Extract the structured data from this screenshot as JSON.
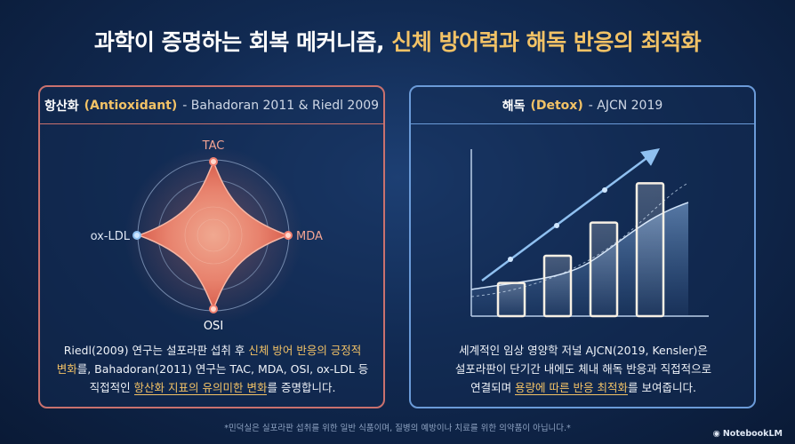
{
  "title": {
    "main": "과학이 증명하는 회복 메커니즘, ",
    "highlight": "신체 방어력과 해독 반응의 최적화"
  },
  "left_panel": {
    "heading_ko": "항산화",
    "heading_en": "(Antioxidant)",
    "heading_sub": " - Bahadoran 2011 & Riedl 2009",
    "axes": {
      "top": "TAC",
      "right": "MDA",
      "bottom": "OSI",
      "left": "ox-LDL"
    },
    "desc": {
      "l1a": "Riedl(2009) 연구는 설포라판 섭취 후 ",
      "l1b": "신체 방어 반응의 긍정적",
      "l2a": "변화",
      "l2b": "를, Bahadoran(2011) 연구는 TAC, MDA, OSI, ox-LDL 등",
      "l3a": "직접적인 ",
      "l3b": "항산화 지표의 유의미한 변화",
      "l3c": "를 증명합니다."
    }
  },
  "right_panel": {
    "heading_ko": "해독",
    "heading_en": "(Detox)",
    "heading_sub": " - AJCN 2019",
    "bar_levels": [
      0.22,
      0.4,
      0.62,
      0.88
    ],
    "desc": {
      "l1": "세계적인 임상 영양학 저널 AJCN(2019, Kensler)은",
      "l2": "설포라판이 단기간 내에도 체내 해독 반응과 직접적으로",
      "l3a": "연결되며 ",
      "l3b": "용량에 따른 반응 최적화",
      "l3c": "를 보여줍니다."
    }
  },
  "footer": "*민덕실은 실포라판 섭취를 위한 일반 식품이며, 질병의 예방이나 치료를 위한 의약품이 아닙니다.*",
  "brand": "NotebookLM"
}
